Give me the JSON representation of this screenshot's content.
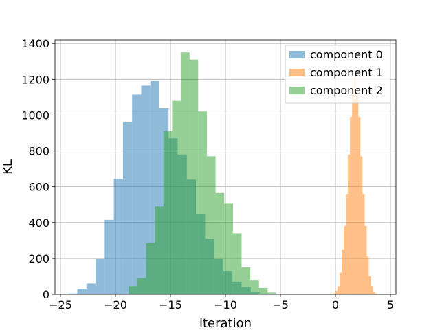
{
  "chart_data": {
    "type": "bar",
    "subtype": "histogram",
    "title": "",
    "xlabel": "iteration",
    "ylabel": "KL",
    "xlim": [
      -25.5,
      5.5
    ],
    "ylim": [
      0,
      1420
    ],
    "xticks": [
      -25,
      -20,
      -15,
      -10,
      -5,
      0,
      5
    ],
    "xtick_labels": [
      "−25",
      "−20",
      "−15",
      "−10",
      "−5",
      "0",
      "5"
    ],
    "yticks": [
      0,
      200,
      400,
      600,
      800,
      1000,
      1200,
      1400
    ],
    "ytick_labels": [
      "0",
      "200",
      "400",
      "600",
      "800",
      "1000",
      "1200",
      "1400"
    ],
    "grid": true,
    "legend_position": "top-right",
    "alpha": 0.5,
    "series": [
      {
        "name": "component 0",
        "color": "#1f77b4",
        "bin_start": -24.3,
        "bin_width": 0.83,
        "values": [
          5,
          30,
          60,
          200,
          415,
          645,
          960,
          1115,
          1165,
          1190,
          1040,
          870,
          780,
          640,
          445,
          310,
          200,
          130,
          70,
          40,
          15,
          5,
          3,
          1
        ]
      },
      {
        "name": "component 1",
        "color": "#ff7f0e",
        "bin_start": -0.2,
        "bin_width": 0.19,
        "values": [
          5,
          20,
          45,
          120,
          250,
          380,
          560,
          780,
          990,
          1150,
          1215,
          1150,
          990,
          770,
          560,
          380,
          210,
          100,
          45,
          15,
          5
        ]
      },
      {
        "name": "component 2",
        "color": "#2ca02c",
        "bin_start": -18.8,
        "bin_width": 0.79,
        "values": [
          45,
          90,
          285,
          490,
          910,
          1080,
          1350,
          1310,
          1020,
          770,
          565,
          505,
          340,
          150,
          80,
          35,
          10
        ]
      }
    ]
  }
}
